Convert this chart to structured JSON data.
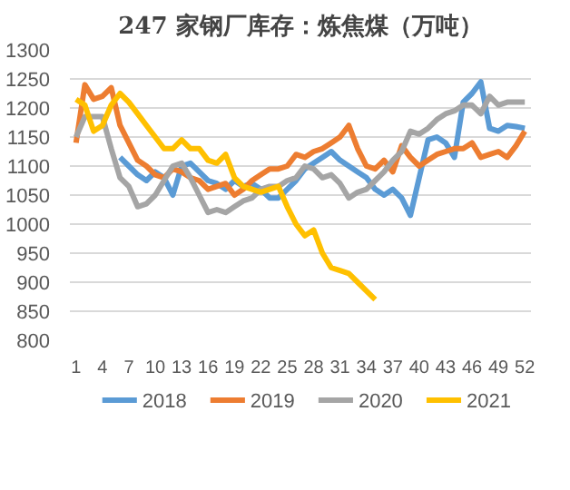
{
  "chart_data": {
    "type": "line",
    "title": "247 家钢厂库存：炼焦煤（万吨）",
    "categories": [
      "1",
      null,
      null,
      "4",
      null,
      null,
      "7",
      null,
      null,
      "10",
      null,
      null,
      "13",
      null,
      null,
      "16",
      null,
      null,
      "19",
      null,
      null,
      "22",
      null,
      null,
      "25",
      null,
      null,
      "28",
      null,
      null,
      "31",
      null,
      null,
      "34",
      null,
      null,
      "37",
      null,
      null,
      "40",
      null,
      null,
      "43",
      null,
      null,
      "46",
      null,
      null,
      "49",
      null,
      null,
      "52"
    ],
    "series": [
      {
        "name": "2018",
        "color": "#5b9bd5",
        "values": [
          null,
          null,
          null,
          null,
          null,
          1115,
          1100,
          1085,
          1075,
          1090,
          1080,
          1050,
          1100,
          1105,
          1090,
          1075,
          1070,
          1060,
          1075,
          1065,
          1070,
          1060,
          1045,
          1045,
          1060,
          1075,
          1095,
          1105,
          1115,
          1125,
          1110,
          1100,
          1090,
          1080,
          1060,
          1050,
          1060,
          1045,
          1015,
          1080,
          1145,
          1150,
          1140,
          1115,
          1210,
          1225,
          1245,
          1165,
          1160,
          1170,
          1168,
          1165
        ]
      },
      {
        "name": "2019",
        "color": "#ed7d31",
        "values": [
          1140,
          1240,
          1215,
          1220,
          1235,
          1170,
          1140,
          1110,
          1100,
          1085,
          1080,
          1095,
          1090,
          1080,
          1075,
          1060,
          1065,
          1070,
          1050,
          1060,
          1075,
          1085,
          1095,
          1095,
          1100,
          1120,
          1115,
          1125,
          1130,
          1140,
          1150,
          1170,
          1130,
          1100,
          1095,
          1110,
          1090,
          1135,
          1115,
          1100,
          1110,
          1120,
          1125,
          1130,
          1130,
          1140,
          1115,
          1120,
          1125,
          1115,
          1135,
          1160
        ]
      },
      {
        "name": "2020",
        "color": "#a5a5a5",
        "values": [
          1150,
          1185,
          1185,
          1185,
          1130,
          1080,
          1065,
          1030,
          1035,
          1050,
          1075,
          1100,
          1105,
          1080,
          1050,
          1020,
          1025,
          1020,
          1030,
          1040,
          1045,
          1060,
          1065,
          1065,
          1075,
          1080,
          1100,
          1095,
          1080,
          1085,
          1070,
          1045,
          1055,
          1060,
          1075,
          1090,
          1110,
          1125,
          1160,
          1155,
          1165,
          1180,
          1190,
          1195,
          1205,
          1205,
          1190,
          1220,
          1205,
          1210,
          1210,
          1210
        ]
      },
      {
        "name": "2021",
        "color": "#ffc000",
        "values": [
          1215,
          1205,
          1160,
          1170,
          1205,
          1225,
          1210,
          1190,
          1170,
          1150,
          1130,
          1130,
          1145,
          1130,
          1130,
          1110,
          1105,
          1120,
          1080,
          1065,
          1060,
          1055,
          1060,
          1065,
          1030,
          1000,
          980,
          990,
          950,
          925,
          920,
          915,
          900,
          885,
          870,
          null,
          null,
          null,
          null,
          null,
          null,
          null,
          null,
          null,
          null,
          null,
          null,
          null,
          null,
          null,
          null,
          null
        ]
      }
    ],
    "ylim": [
      800,
      1300
    ],
    "yticks": [
      800,
      850,
      900,
      950,
      1000,
      1050,
      1100,
      1150,
      1200,
      1250,
      1300
    ],
    "grid": "y",
    "legend": "bottom",
    "line_style": "solid",
    "marker": "none"
  }
}
